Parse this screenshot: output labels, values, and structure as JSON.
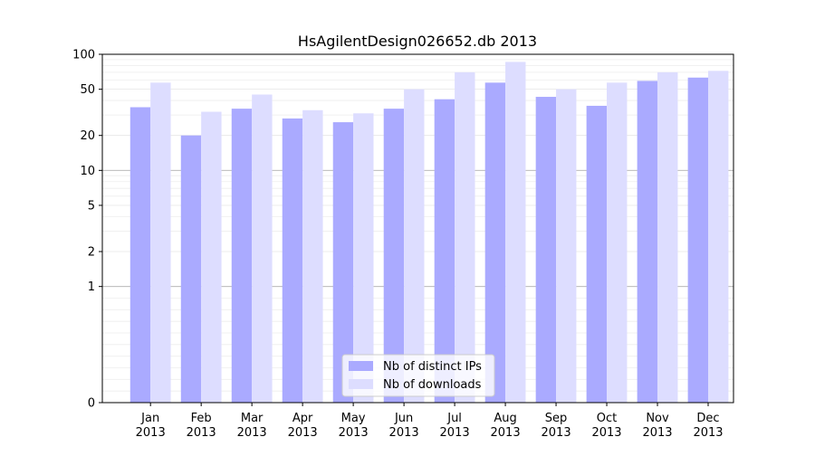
{
  "chart_data": {
    "type": "bar",
    "title": "HsAgilentDesign026652.db 2013",
    "xlabel": "",
    "ylabel": "",
    "y_scale": "symlog",
    "ylim": [
      0,
      100
    ],
    "y_ticks": [
      0,
      1,
      2,
      5,
      10,
      20,
      50,
      100
    ],
    "y_tick_labels": [
      "0",
      "1",
      "2",
      "5",
      "10",
      "20",
      "50",
      "100"
    ],
    "grid": "horizontal",
    "legend_position": "bottom-center",
    "categories": [
      "Jan 2013",
      "Feb 2013",
      "Mar 2013",
      "Apr 2013",
      "May 2013",
      "Jun 2013",
      "Jul 2013",
      "Aug 2013",
      "Sep 2013",
      "Oct 2013",
      "Nov 2013",
      "Dec 2013"
    ],
    "category_labels": [
      [
        "Jan",
        "2013"
      ],
      [
        "Feb",
        "2013"
      ],
      [
        "Mar",
        "2013"
      ],
      [
        "Apr",
        "2013"
      ],
      [
        "May",
        "2013"
      ],
      [
        "Jun",
        "2013"
      ],
      [
        "Jul",
        "2013"
      ],
      [
        "Aug",
        "2013"
      ],
      [
        "Sep",
        "2013"
      ],
      [
        "Oct",
        "2013"
      ],
      [
        "Nov",
        "2013"
      ],
      [
        "Dec",
        "2013"
      ]
    ],
    "series": [
      {
        "name": "Nb of distinct IPs",
        "color": "#aaaaff",
        "values": [
          35,
          20,
          34,
          28,
          26,
          34,
          41,
          57,
          43,
          36,
          59,
          63
        ]
      },
      {
        "name": "Nb of downloads",
        "color": "#ddddff",
        "values": [
          57,
          32,
          45,
          33,
          31,
          50,
          70,
          86,
          50,
          57,
          70,
          72
        ]
      }
    ]
  }
}
